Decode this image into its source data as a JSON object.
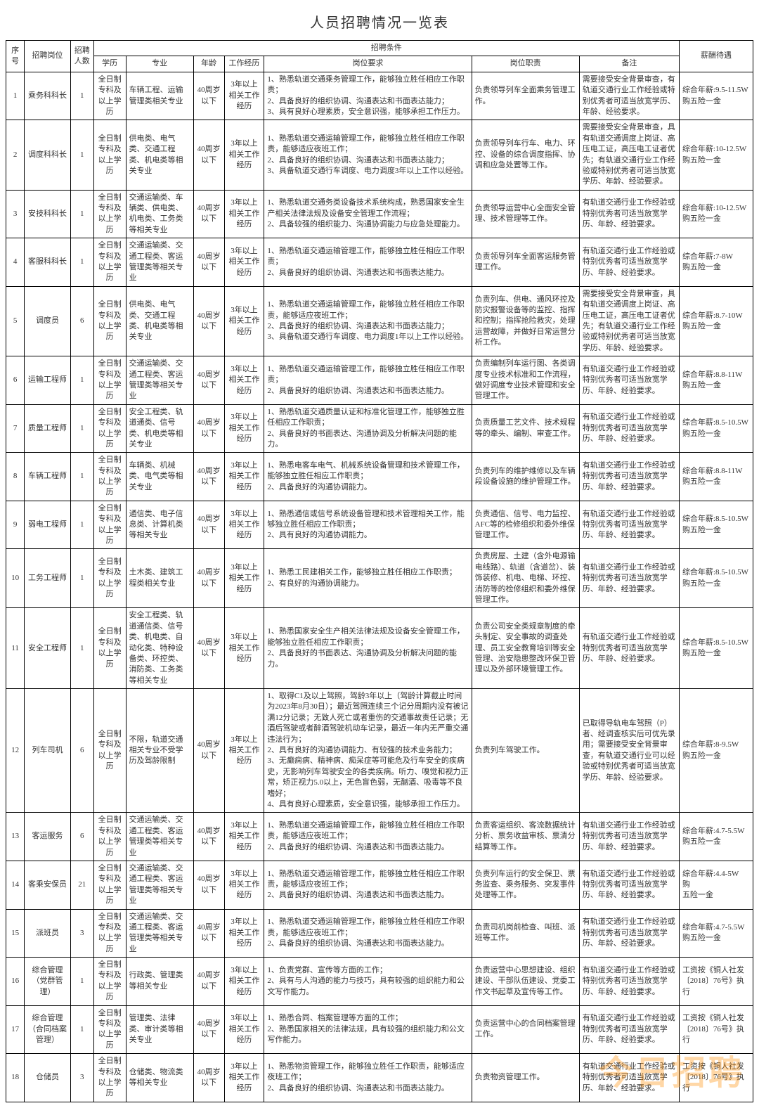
{
  "title": "人员招聘情况一览表",
  "watermark": "今日招聘",
  "headers": {
    "idx": "序号",
    "post": "招聘岗位",
    "num": "招聘人数",
    "cond_group": "招聘条件",
    "edu": "学历",
    "major": "专业",
    "age": "年龄",
    "exp": "工作经历",
    "req": "岗位要求",
    "duty": "岗位职责",
    "note": "备注",
    "sal": "薪酬待遇"
  },
  "common": {
    "edu": "全日制专科及以上学历",
    "age": "40周岁以下",
    "exp": "3年以上相关工作经历"
  },
  "rows": [
    {
      "idx": "1",
      "post": "乘务科科长",
      "num": "1",
      "edu": "全日制专科及以上学历",
      "major": "车辆工程、运输管理类相关专业",
      "age": "40周岁以下",
      "exp": "3年以上相关工作经历",
      "req": "1、熟悉轨道交通乘务管理工作，能够独立胜任相应工作职责；\n2、具备良好的组织协调、沟通表达和书面表达能力；\n3、具有良好心理素质，安全意识强，能够承担工作压力。",
      "duty": "负责领导列车全面乘务管理工作。",
      "note": "需要接受安全背景审查，有轨道交通行业工作经验或特别优秀者可适当放宽学历、年龄、经验要求。",
      "sal": "综合年薪:9.5-11.5W\n购五险一金"
    },
    {
      "idx": "2",
      "post": "调度科科长",
      "num": "1",
      "edu": "全日制专科及以上学历",
      "major": "供电类、电气类、交通工程类、机电类等相关专业",
      "age": "40周岁以下",
      "exp": "3年以上相关工作经历",
      "req": "1、熟悉轨道交通运输管理工作，能够独立胜任相应工作职责，能够适应夜班工作；\n2、具备良好的组织协调、沟通表达和书面表达能力；\n3、具备轨道交通行车调度、电力调度3年以上工作以经验。",
      "duty": "负责领导列车行车、电力、环控、设备的综合调度指挥、协调和应急处置等工作。",
      "note": "需要接受安全背景审查，具有轨道交通调度上岗证、高压电工证，高压电工证者优先；有轨道交通行业工作经验或特别优秀者可适当放宽学历、年龄、经验要求。",
      "sal": "综合年薪:10-12.5W\n购五险一金"
    },
    {
      "idx": "3",
      "post": "安技科科长",
      "num": "1",
      "edu": "全日制专科及以上学历",
      "major": "交通运输类、车辆类、供电类、机电类、工务类等相关专业",
      "age": "40周岁以下",
      "exp": "3年以上相关工作经历",
      "req": "1、熟悉轨道交通务类设备技术系统构成，熟悉国家安全生产相关法律法规及设备安全管理工作流程；\n2、具备较强的组织能力、沟通协调能力与应急处理能力。",
      "duty": "负责领导运营中心全面安全管理、技术管理等工作。",
      "note": "有轨道交通行业工作经验或特别优秀者可适当放宽学历、年龄、经验要求。",
      "sal": "综合年薪:10-12.5W\n购五险一金"
    },
    {
      "idx": "4",
      "post": "客服科科长",
      "num": "1",
      "edu": "全日制专科及以上学历",
      "major": "交通运输类、交通工程类、客运管理类等相关专业",
      "age": "40周岁以下",
      "exp": "3年以上相关工作经历",
      "req": "1、熟悉轨道交通运输管理工作，能够独立胜任相应工作职责；\n2、具备良好的组织协调、沟通表达和书面表达能力。",
      "duty": "负责领导列车全面客运服务管理工作。",
      "note": "有轨道交通行业工作经验或特别优秀者可适当放宽学历、年龄、经验要求。",
      "sal": "综合年薪:7-8W\n购五险一金"
    },
    {
      "idx": "5",
      "post": "调度员",
      "num": "6",
      "edu": "全日制专科及以上学历",
      "major": "供电类、电气类、交通工程类、机电类等相关专业",
      "age": "40周岁以下",
      "exp": "3年以上相关工作经历",
      "req": "1、熟悉轨道交通运输管理工作，能够独立胜任相应工作职责，能够适应夜班工作；\n2、具备良好的组织协调、沟通表达和书面表达能力；\n3、具备轨道交通行车调度、电力调度1年以上工作以经验。",
      "duty": "负责列车、供电、通风环控及防灾报警设备等的监控、指挥和控制；指挥抢险救灾，处理运营故障，并做好日常运营分析工作。",
      "note": "需要接受安全背景审查，具有轨道交通调度上岗证、高压电工证，高压电工证者优先；有轨道交通行业工作经验或特别优秀者可适当放宽学历、年龄、经验要求。",
      "sal": "综合年薪:8.7-10W\n购五险一金"
    },
    {
      "idx": "6",
      "post": "运输工程师",
      "num": "1",
      "edu": "全日制专科及以上学历",
      "major": "交通运输类、交通工程类、客运管理类等相关专业",
      "age": "40周岁以下",
      "exp": "3年以上相关工作经历",
      "req": "1、熟悉轨道交通运输管理工作，能够独立胜任相应工作职责；\n2、具备良好的组织协调、沟通表达和书面表达能力。",
      "duty": "负责编制列车运行图、各类调度专业技术标准和工作流程，做好调度专业技术管理和安全管理工作。",
      "note": "有轨道交通行业工作经验或特别优秀者可适当放宽学历、年龄、经验要求。",
      "sal": "综合年薪:8.8-11W\n购五险一金"
    },
    {
      "idx": "7",
      "post": "质量工程师",
      "num": "1",
      "edu": "全日制专科及以上学历",
      "major": "安全工程类、轨道通类、信号类、机电类等相关专业",
      "age": "40周岁以下",
      "exp": "3年以上相关工作经历",
      "req": "1、熟悉轨道交通质量认证和标准化管理工作，能够独立胜任相应工作职责；\n2、具备良好的书面表达、沟通协调及分析解决问题的能力。",
      "duty": "负责质量工艺文件、技术规程等的牵头、编制、审查工作。",
      "note": "有轨道交通行业工作经验或特别优秀者可适当放宽学历、年龄、经验要求。",
      "sal": "综合年薪:8.5-10.5W\n购五险一金"
    },
    {
      "idx": "8",
      "post": "车辆工程师",
      "num": "1",
      "edu": "全日制专科及以上学历",
      "major": "车辆类、机械类、电气类等相关专业",
      "age": "40周岁以下",
      "exp": "3年以上相关工作经历",
      "req": "1、熟悉电客车电气、机械系统设备管理和技术管理工作，能够独立胜任相应工作职责；\n2、具备良好的沟通协调能力。",
      "duty": "负责列车的维护维修以及车辆段设备设施的维护管理工作。",
      "note": "有轨道交通行业工作经验或特别优秀者可适当放宽学历、年龄、经验要求。",
      "sal": "综合年薪:8.8-11W\n购五险一金"
    },
    {
      "idx": "9",
      "post": "弱电工程师",
      "num": "1",
      "edu": "全日制专科及以上学历",
      "major": "通信类、电子信息类、计算机类等相关专业",
      "age": "40周岁以下",
      "exp": "3年以上相关工作经历",
      "req": "1、熟悉通信或信号系统设备管理和技术管理相关工作，能够独立胜任相应工作职责；\n2、具有良好的沟通协调能力。",
      "duty": "负责通信、信号、电力监控、AFC等的检修组织和委外维保管理工作。",
      "note": "有轨道交通行业工作经验或特别优秀者可适当放宽学历、年龄、经验要求。",
      "sal": "综合年薪:8.5-10.5W\n购五险一金"
    },
    {
      "idx": "10",
      "post": "工务工程师",
      "num": "1",
      "edu": "全日制专科及以上学历",
      "major": "土木类、建筑工程类相关专业",
      "age": "40周岁以下",
      "exp": "3年以上相关工作经历",
      "req": "1、熟悉工民建相关工作，能够独立胜任相应工作职责；\n2、有良好的沟通协调能力。",
      "duty": "负责房屋、土建（含外电源输电线路）、轨道（含道岔）、装饰装修、机电、电梯、环控、消防等的检修组织和委外维保管理工作。",
      "note": "有轨道交通行业工作经验或特别优秀者可适当放宽学历、年龄、经验要求。",
      "sal": "综合年薪:8.5-10.5W\n购五险一金"
    },
    {
      "idx": "11",
      "post": "安全工程师",
      "num": "1",
      "edu": "全日制专科及以上学历",
      "major": "安全工程类、轨道通信类、信号类、机电类、自动化类、特种设备类、环控类、消防类、工务类等相关专业",
      "age": "40周岁以下",
      "exp": "3年以上相关工作经历",
      "req": "1、熟悉国家安全生产相关法律法规及设备安全管理工作，能够独立胜任相应工作职责；\n2、具备良好的书面表达、沟通协调及分析解决问题的能力。",
      "duty": "负责公司安全类规章制度的牵头制定、安全事故的调查处理、员工安全教育培训等安全管理、治安隐患整改环保卫管理以及外部环境管理工作。",
      "note": "有轨道交通行业工作经验或特别优秀者可适当放宽学历、年龄、经验要求。",
      "sal": "综合年薪:8.5-10.5W\n购五险一金"
    },
    {
      "idx": "12",
      "post": "列车司机",
      "num": "6",
      "edu": "全日制专科及以上学历",
      "major": "不限，轨道交通相关专业不受学历及驾龄限制",
      "age": "40周岁以下",
      "exp": "3年以上相关工作经历",
      "req": "1、取得C1及以上驾照，驾龄3年以上（驾龄计算截止时间为2023年8月30日）；最近驾照连续三个记分周期内没有被记满12分记录；无致人死亡或者重伤的交通事故责任记录；无酒后驾驶或者醉酒驾驶机动车记录，最近一年内无严重交通违法行为；\n2、具有良好的沟通协调能力、有较强的技术业务能力；\n3、无癫痫病、精神病、痴呆症等可能危及行车安全的疾病史，无影响列车驾驶安全的各类疾病。听力、嗅觉和视力正常，矫正视力5.0以上，无色盲色弱，无酗酒、吸毒等不良嗜好；\n4、具有良好心理素质，安全意识强，能够承担工作压力。",
      "duty": "负责列车驾驶工作。",
      "note": "已取得导轨电车驾照（P）者、经调查核实后可优先录用；需要接受安全背景审查，有轨道交通行业可以经验或特别优秀者可适当放宽学历、年龄、经验要求。",
      "sal": "综合年薪:8-9.5W\n购五险一金"
    },
    {
      "idx": "13",
      "post": "客运服务",
      "num": "6",
      "edu": "全日制专科及以上学历",
      "major": "交通运输类、交通工程类、客运管理类等相关专业",
      "age": "40周岁以下",
      "exp": "3年以上相关工作经历",
      "req": "1、熟悉轨道交通运输管理工作，能够独立胜任相应工作职责，能够适应夜班工作；\n2、具备良好的组织协调、沟通表达和书面表达能力。",
      "duty": "负责客运组织、客流数据统计分析、票务收益审核、票清分结算等工作。",
      "note": "有轨道交通行业工作经验或特别优秀者可适当放宽学历、年龄、经验要求。",
      "sal": "综合年薪:4.7-5.5W\n购五险一金"
    },
    {
      "idx": "14",
      "post": "客乘安保员",
      "num": "21",
      "edu": "全日制专科及以上学历",
      "major": "交通运输类、交通工程类、客运管理类等相关专业",
      "age": "40周岁以下",
      "exp": "3年以上相关工作经历",
      "req": "1、熟悉轨道交通运输管理工作，能够独立胜任相应工作职责，能够适应夜班工作；\n2、具备良好的组织协调、沟通表达和书面表达能力。",
      "duty": "负责列车运行的安全保卫、票务监查、乘务服务、突发事件处理等工作。",
      "note": "有轨道交通行业工作经验或特别优秀者可适当放宽学历、年龄、经验要求。",
      "sal": "综合年薪:4.4-5W\n购\n五险一金"
    },
    {
      "idx": "15",
      "post": "派班员",
      "num": "3",
      "edu": "全日制专科及以上学历",
      "major": "交通运输类、交通工程类、客运管理类等相关专业",
      "age": "40周岁以下",
      "exp": "3年以上相关工作经历",
      "req": "1、熟悉轨道交通运输管理工作，能够独立胜任相应工作职责，能够适应夜班工作；\n2、具备良好的组织协调、沟通表达和书面表达能力。",
      "duty": "负责司机岗前检查、叫班、派班等工作。",
      "note": "有轨道交通行业工作经验或特别优秀者可适当放宽学历、年龄、经验要求。",
      "sal": "综合年薪:4.7-5.5W\n购五险一金"
    },
    {
      "idx": "16",
      "post": "综合管理（党群管理）",
      "num": "1",
      "edu": "全日制专科及以上学历",
      "major": "行政类、管理类等相关专业",
      "age": "40周岁以下",
      "exp": "3年以上相关工作经历",
      "req": "1、负责党群、宣传等方面的工作；\n2、具有与人沟通的能力与技巧，具有较强的组织能力和公文写作能力。",
      "duty": "负责运营中心思想建设、组织建设、干部队伍建设、党委工作文书起草及宣传等工作。",
      "note": "有轨道交通行业工作经验或特别优秀者可适当放宽学历、年龄、经验要求。",
      "sal": "工资按《铜人社发〔2018〕76号》执行"
    },
    {
      "idx": "17",
      "post": "综合管理（合同档案管理）",
      "num": "1",
      "edu": "全日制专科及以上学历",
      "major": "管理类、法律类、审计类等相关专业",
      "age": "40周岁以下",
      "exp": "3年以上相关工作经历",
      "req": "1、熟悉合同、档案管理等方面的工作；\n2、熟悉国家相关的法律法规，具有较强的组织能力和公文写作能力。",
      "duty": "负责运营中心的合同档案管理工作。",
      "note": "有轨道交通行业工作经验或特别优秀者可适当放宽学历、年龄、经验要求。",
      "sal": "工资按《铜人社发〔2018〕76号》执行"
    },
    {
      "idx": "18",
      "post": "仓储员",
      "num": "3",
      "edu": "全日制专科及以上学历",
      "major": "仓储类、物流类等相关专业",
      "age": "40周岁以下",
      "exp": "3年以上相关工作经历",
      "req": "1、熟悉物资管理工作，能够独立胜任工作职责，能够适应夜班工作；\n2、具备良好的组织协调、沟通表达和书面表达能力。",
      "duty": "负责物资管理工作。",
      "note": "有轨道交通行业工作经验或特别优秀者可适当放宽学历、年龄、经验要求。",
      "sal": "工资按《铜人社发〔2018〕76号》执行"
    }
  ]
}
